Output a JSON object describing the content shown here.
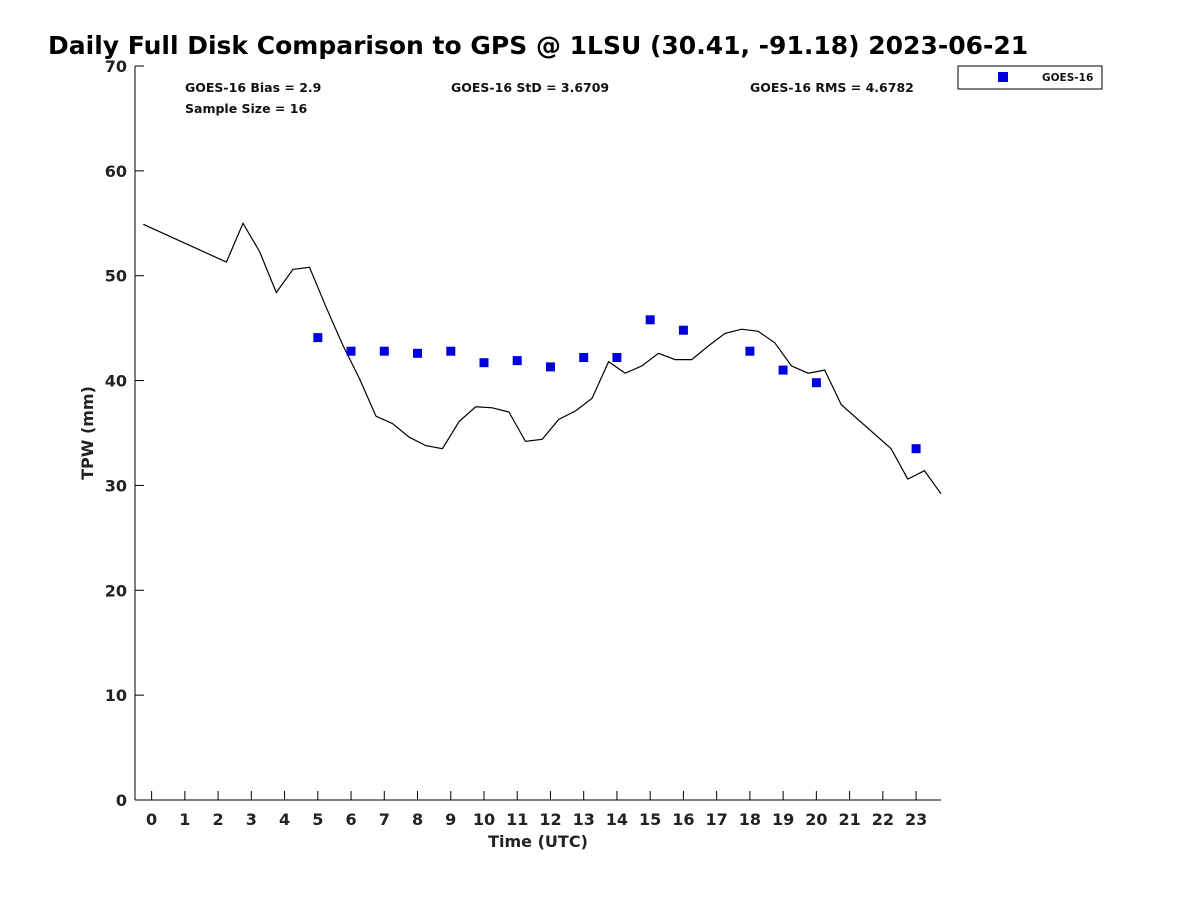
{
  "chart_data": {
    "type": "line",
    "title": "Daily Full Disk Comparison to GPS @ 1LSU (30.41, -91.18) 2023-06-21",
    "xlabel": "Time (UTC)",
    "ylabel": "TPW (mm)",
    "xlim": [
      -0.5,
      23.75
    ],
    "ylim": [
      0,
      70
    ],
    "xticks": [
      0,
      1,
      2,
      3,
      4,
      5,
      6,
      7,
      8,
      9,
      10,
      11,
      12,
      13,
      14,
      15,
      16,
      17,
      18,
      19,
      20,
      21,
      22,
      23
    ],
    "yticks": [
      0,
      10,
      20,
      30,
      40,
      50,
      60,
      70
    ],
    "grid": false,
    "legend_position": "top-right",
    "stats": {
      "bias": "GOES-16 Bias = 2.9",
      "sample_size": "Sample Size = 16",
      "std": "GOES-16 StD = 3.6709",
      "rms": "GOES-16 RMS = 4.6782"
    },
    "series": [
      {
        "name": "",
        "type": "line",
        "color": "#000000",
        "points": [
          [
            -0.25,
            54.9
          ],
          [
            2.25,
            51.3
          ],
          [
            2.75,
            55.0
          ],
          [
            3.25,
            52.3
          ],
          [
            3.75,
            48.4
          ],
          [
            4.25,
            50.6
          ],
          [
            4.75,
            50.8
          ],
          [
            5.25,
            47.0
          ],
          [
            5.75,
            43.4
          ],
          [
            6.25,
            40.2
          ],
          [
            6.75,
            36.6
          ],
          [
            7.25,
            35.9
          ],
          [
            7.75,
            34.6
          ],
          [
            8.25,
            33.8
          ],
          [
            8.75,
            33.5
          ],
          [
            9.25,
            36.1
          ],
          [
            9.75,
            37.5
          ],
          [
            10.25,
            37.4
          ],
          [
            10.75,
            37.0
          ],
          [
            11.25,
            34.2
          ],
          [
            11.75,
            34.4
          ],
          [
            12.25,
            36.3
          ],
          [
            12.75,
            37.1
          ],
          [
            13.25,
            38.3
          ],
          [
            13.75,
            41.8
          ],
          [
            14.25,
            40.7
          ],
          [
            14.75,
            41.4
          ],
          [
            15.25,
            42.6
          ],
          [
            15.75,
            42.0
          ],
          [
            16.25,
            42.0
          ],
          [
            16.75,
            43.3
          ],
          [
            17.25,
            44.5
          ],
          [
            17.75,
            44.9
          ],
          [
            18.25,
            44.7
          ],
          [
            18.75,
            43.6
          ],
          [
            19.25,
            41.4
          ],
          [
            19.75,
            40.7
          ],
          [
            20.25,
            41.0
          ],
          [
            20.75,
            37.7
          ],
          [
            22.25,
            33.5
          ],
          [
            22.75,
            30.6
          ],
          [
            23.25,
            31.4
          ],
          [
            23.75,
            29.2
          ]
        ]
      },
      {
        "name": "GOES-16",
        "type": "scatter",
        "marker": "square",
        "color": "#0000dd",
        "points": [
          [
            5,
            44.1
          ],
          [
            6,
            42.8
          ],
          [
            7,
            42.8
          ],
          [
            8,
            42.6
          ],
          [
            9,
            42.8
          ],
          [
            10,
            41.7
          ],
          [
            11,
            41.9
          ],
          [
            12,
            41.3
          ],
          [
            13,
            42.2
          ],
          [
            14,
            42.2
          ],
          [
            15,
            45.8
          ],
          [
            16,
            44.8
          ],
          [
            18,
            42.8
          ],
          [
            19,
            41.0
          ],
          [
            20,
            39.8
          ],
          [
            23,
            33.5
          ]
        ]
      }
    ],
    "legend": [
      {
        "label": "GOES-16",
        "marker": "square",
        "color": "#0000dd"
      }
    ]
  }
}
